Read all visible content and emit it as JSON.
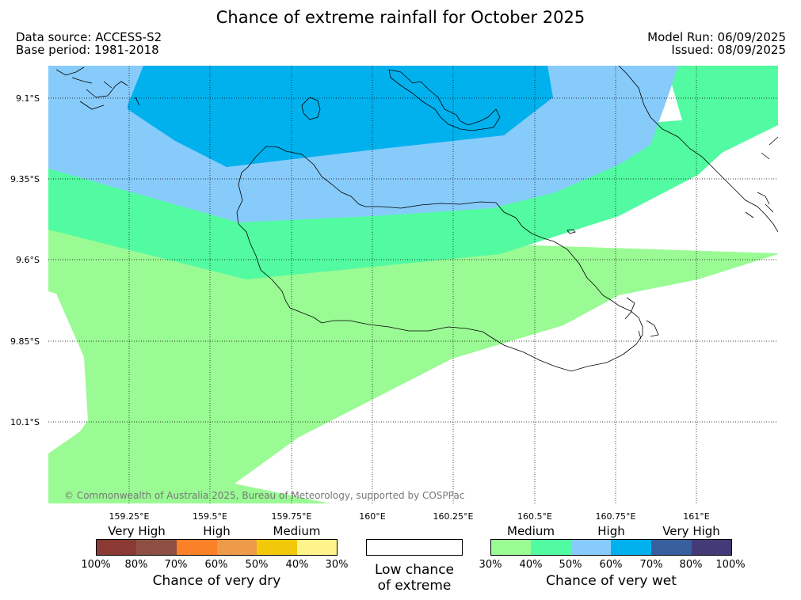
{
  "title": "Chance of extreme rainfall for October 2025",
  "meta": {
    "data_source": "Data source: ACCESS-S2",
    "base_period": "Base period: 1981-2018",
    "model_run": "Model Run: 06/09/2025",
    "issued": "Issued: 08/09/2025"
  },
  "map": {
    "latitude_labels": [
      "9.1°S",
      "9.35°S",
      "9.6°S",
      "9.85°S",
      "10.1°S"
    ],
    "longitude_labels": [
      "159.25°E",
      "159.5°E",
      "159.75°E",
      "160°E",
      "160.25°E",
      "160.5°E",
      "160.75°E",
      "161°E"
    ],
    "copyright": "© Commonwealth of Australia 2025, Bureau of Meteorology, supported by COSPPac",
    "colors": {
      "wet_30_40": "#9afb94",
      "wet_40_50": "#52fba1",
      "wet_50_60": "#87cbfb",
      "wet_60_70": "#01b1ed",
      "low_chance": "#ffffff"
    }
  },
  "legend": {
    "dry": {
      "categories": [
        "Very High",
        "High",
        "Medium"
      ],
      "ticks": [
        "100%",
        "80%",
        "70%",
        "60%",
        "50%",
        "40%",
        "30%"
      ],
      "colors": [
        "#8b3a33",
        "#8c4f42",
        "#fa8127",
        "#ee9b49",
        "#f2c90a",
        "#fff38c"
      ],
      "title": "Chance of very dry"
    },
    "low": {
      "line1": "Low chance",
      "line2": "of extreme",
      "color": "#ffffff"
    },
    "wet": {
      "categories": [
        "Medium",
        "High",
        "Very High"
      ],
      "ticks": [
        "30%",
        "40%",
        "50%",
        "60%",
        "70%",
        "80%",
        "100%"
      ],
      "colors": [
        "#9afb94",
        "#52fba1",
        "#87cbfb",
        "#01b1ed",
        "#375e9d",
        "#433a77"
      ],
      "title": "Chance of very wet"
    }
  }
}
